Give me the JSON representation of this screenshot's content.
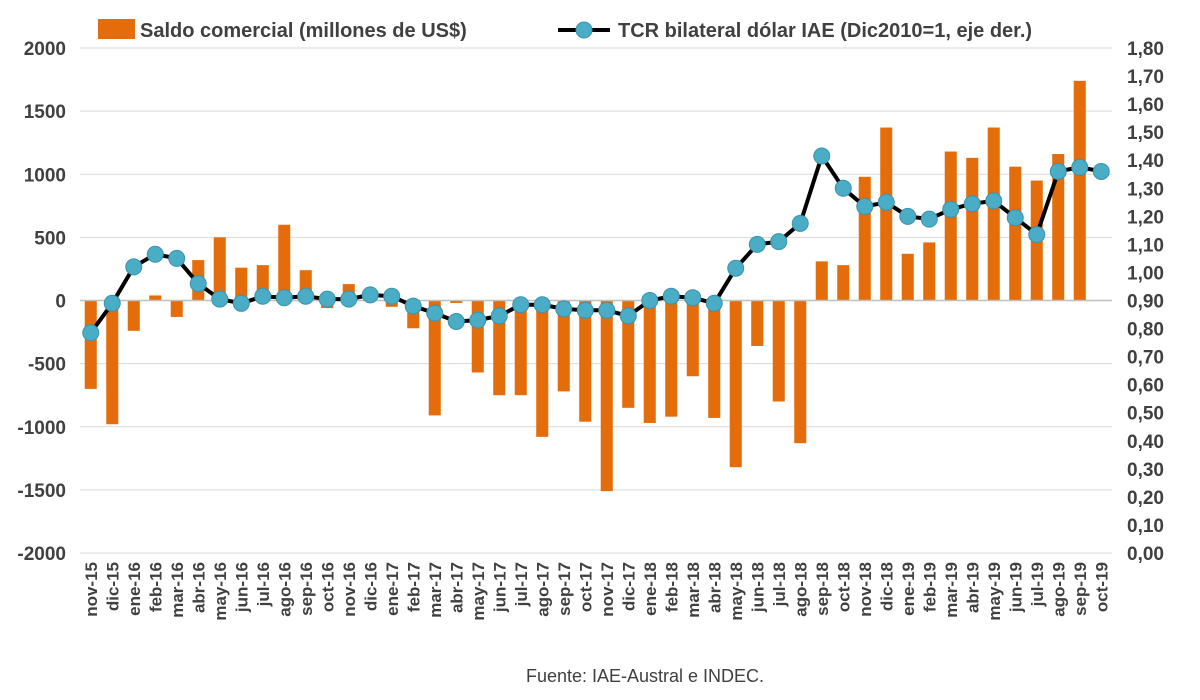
{
  "chart_data": {
    "type": "bar+line",
    "categories": [
      "nov-15",
      "dic-15",
      "ene-16",
      "feb-16",
      "mar-16",
      "abr-16",
      "may-16",
      "jun-16",
      "jul-16",
      "ago-16",
      "sep-16",
      "oct-16",
      "nov-16",
      "dic-16",
      "ene-17",
      "feb-17",
      "mar-17",
      "abr-17",
      "may-17",
      "jun-17",
      "jul-17",
      "ago-17",
      "sep-17",
      "oct-17",
      "nov-17",
      "dic-17",
      "ene-18",
      "feb-18",
      "mar-18",
      "abr-18",
      "may-18",
      "jun-18",
      "jul-18",
      "ago-18",
      "sep-18",
      "oct-18",
      "nov-18",
      "dic-18",
      "ene-19",
      "feb-19",
      "mar-19",
      "abr-19",
      "may-19",
      "jun-19",
      "jul-19",
      "ago-19",
      "sep-19",
      "oct-19"
    ],
    "series": [
      {
        "name": "Saldo comercial (millones de US$)",
        "type": "bar",
        "axis": "left",
        "color": "#E46C0A",
        "values": [
          -700,
          -980,
          -240,
          40,
          -130,
          320,
          500,
          260,
          280,
          600,
          240,
          -60,
          130,
          20,
          -50,
          -220,
          -910,
          -20,
          -570,
          -750,
          -750,
          -1080,
          -720,
          -960,
          -1510,
          -850,
          -970,
          -920,
          -600,
          -930,
          -1320,
          -360,
          -800,
          -1130,
          310,
          280,
          980,
          1370,
          370,
          460,
          1180,
          1130,
          1370,
          1060,
          950,
          1160,
          1740,
          0
        ]
      },
      {
        "name": "TCR bilateral dólar IAE (Dic2010=1, eje der.)",
        "type": "line",
        "axis": "right",
        "color": "#000000",
        "marker_color": "#4BACC6",
        "values": [
          0.785,
          0.89,
          1.02,
          1.065,
          1.05,
          0.96,
          0.905,
          0.89,
          0.915,
          0.91,
          0.915,
          0.905,
          0.905,
          0.92,
          0.915,
          0.88,
          0.855,
          0.825,
          0.83,
          0.845,
          0.885,
          0.885,
          0.87,
          0.865,
          0.865,
          0.845,
          0.9,
          0.915,
          0.91,
          0.89,
          1.015,
          1.1,
          1.11,
          1.175,
          1.415,
          1.3,
          1.235,
          1.25,
          1.2,
          1.19,
          1.225,
          1.245,
          1.255,
          1.195,
          1.135,
          1.36,
          1.375,
          1.36
        ]
      }
    ],
    "y_left": {
      "min": -2000,
      "max": 2000,
      "step": 500,
      "ticks": [
        "-2000",
        "-1500",
        "-1000",
        "-500",
        "0",
        "500",
        "1000",
        "1500",
        "2000"
      ]
    },
    "y_right": {
      "min": 0,
      "max": 1.8,
      "step": 0.1,
      "ticks": [
        "0,00",
        "0,10",
        "0,20",
        "0,30",
        "0,40",
        "0,50",
        "0,60",
        "0,70",
        "0,80",
        "0,90",
        "1,00",
        "1,10",
        "1,20",
        "1,30",
        "1,40",
        "1,50",
        "1,60",
        "1,70",
        "1,80"
      ]
    },
    "grid": true,
    "legend_placement": "top",
    "source": "Fuente: IAE-Austral e INDEC."
  }
}
